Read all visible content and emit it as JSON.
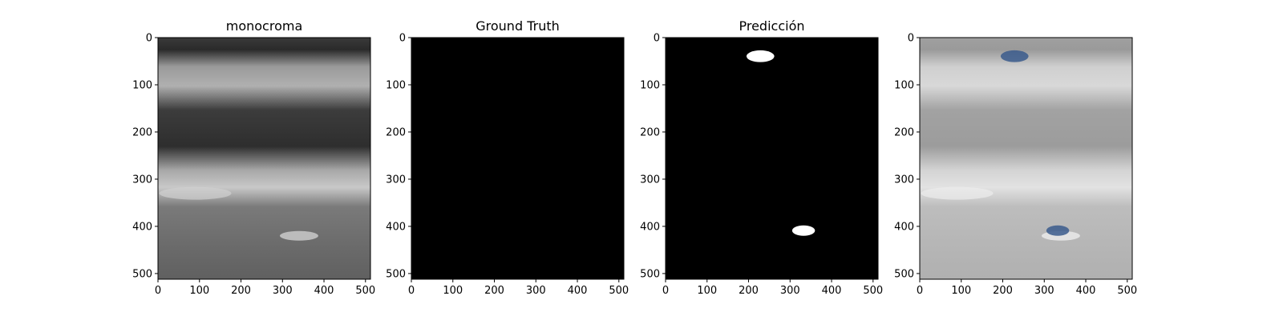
{
  "chart_data": [
    {
      "type": "image",
      "title": "monocroma",
      "image": "ultrasound-grayscale",
      "xlim": [
        0,
        512
      ],
      "ylim": [
        512,
        0
      ],
      "xticks": [
        "0",
        "100",
        "200",
        "300",
        "400",
        "500"
      ],
      "yticks": [
        "0",
        "100",
        "200",
        "300",
        "400",
        "500"
      ]
    },
    {
      "type": "image",
      "title": "Ground Truth",
      "image": "mask-empty",
      "xlim": [
        0,
        512
      ],
      "ylim": [
        512,
        0
      ],
      "xticks": [
        "0",
        "100",
        "200",
        "300",
        "400",
        "500"
      ],
      "yticks": [
        "0",
        "100",
        "200",
        "300",
        "400",
        "500"
      ]
    },
    {
      "type": "image",
      "title": "Predicción",
      "image": "mask-prediction",
      "xlim": [
        0,
        512
      ],
      "ylim": [
        512,
        0
      ],
      "xticks": [
        "0",
        "100",
        "200",
        "300",
        "400",
        "500"
      ],
      "yticks": [
        "0",
        "100",
        "200",
        "300",
        "400",
        "500"
      ],
      "regions": [
        {
          "x_range": [
            195,
            262
          ],
          "y_range": [
            27,
            52
          ]
        },
        {
          "x_range": [
            305,
            360
          ],
          "y_range": [
            398,
            420
          ]
        }
      ]
    },
    {
      "type": "image",
      "title": "",
      "image": "ultrasound-overlay",
      "xlim": [
        0,
        512
      ],
      "ylim": [
        512,
        0
      ],
      "xticks": [
        "0",
        "100",
        "200",
        "300",
        "400",
        "500"
      ],
      "yticks": [
        "0",
        "100",
        "200",
        "300",
        "400",
        "500"
      ],
      "overlay_color": "#3a5a8c"
    }
  ],
  "colors": {
    "mask_background": "#000000",
    "mask_foreground": "#ffffff",
    "overlay": "#3a5a8c"
  }
}
